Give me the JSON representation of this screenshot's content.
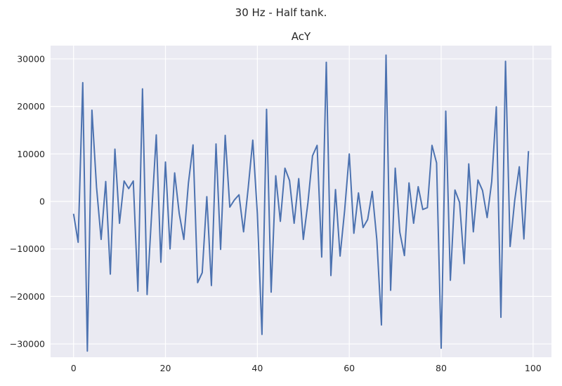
{
  "figure": {
    "suptitle": "30 Hz - Half tank."
  },
  "chart_data": {
    "type": "line",
    "title": "AcY",
    "xlabel": "",
    "ylabel": "",
    "xlim": [
      -5,
      104
    ],
    "ylim": [
      -32800,
      32800
    ],
    "xticks": [
      0,
      20,
      40,
      60,
      80,
      100
    ],
    "yticks": [
      -30000,
      -20000,
      -10000,
      0,
      10000,
      20000,
      30000
    ],
    "grid": true,
    "legend": "none",
    "colors": {
      "series": "#4c72b0",
      "background": "#eaeaf2",
      "grid": "#ffffff"
    },
    "series": [
      {
        "x": [
          0,
          1,
          2,
          3,
          4,
          5,
          6,
          7,
          8,
          9,
          10,
          11,
          12,
          13,
          14,
          15,
          16,
          17,
          18,
          19,
          20,
          21,
          22,
          23,
          24,
          25,
          26,
          27,
          28,
          29,
          30,
          31,
          32,
          33,
          34,
          35,
          36,
          37,
          38,
          39,
          40,
          41,
          42,
          43,
          44,
          45,
          46,
          47,
          48,
          49,
          50,
          51,
          52,
          53,
          54,
          55,
          56,
          57,
          58,
          59,
          60,
          61,
          62,
          63,
          64,
          65,
          66,
          67,
          68,
          69,
          70,
          71,
          72,
          73,
          74,
          75,
          76,
          77,
          78,
          79,
          80,
          81,
          82,
          83,
          84,
          85,
          86,
          87,
          88,
          89,
          90,
          91,
          92,
          93,
          94,
          95,
          96,
          97,
          98,
          99
        ],
        "values": [
          -2600,
          -8600,
          25000,
          -31500,
          19200,
          3000,
          -8000,
          4200,
          -15300,
          11000,
          -4600,
          4300,
          2700,
          4300,
          -18900,
          23700,
          -19600,
          -2500,
          14000,
          -12800,
          8300,
          -10000,
          6000,
          -2600,
          -8000,
          3900,
          11900,
          -17100,
          -15000,
          1000,
          -17700,
          12100,
          -10100,
          13900,
          -1200,
          300,
          1400,
          -6400,
          2800,
          12900,
          -2600,
          -28000,
          19400,
          -19100,
          5400,
          -4200,
          7000,
          4400,
          -4600,
          4800,
          -8000,
          -300,
          9600,
          11800,
          -11700,
          29300,
          -15600,
          2500,
          -11500,
          -1800,
          10000,
          -6700,
          1800,
          -5500,
          -3800,
          2100,
          -8100,
          -26000,
          30800,
          -18700,
          7000,
          -6500,
          -11400,
          3900,
          -4600,
          3100,
          -1700,
          -1300,
          11800,
          8100,
          -30900,
          19000,
          -16600,
          2400,
          -200,
          -13100,
          7900,
          -6400,
          4500,
          2300,
          -3400,
          4200,
          19900,
          -24400,
          29500,
          -9500,
          200,
          7300,
          -7900,
          10600
        ]
      }
    ]
  }
}
